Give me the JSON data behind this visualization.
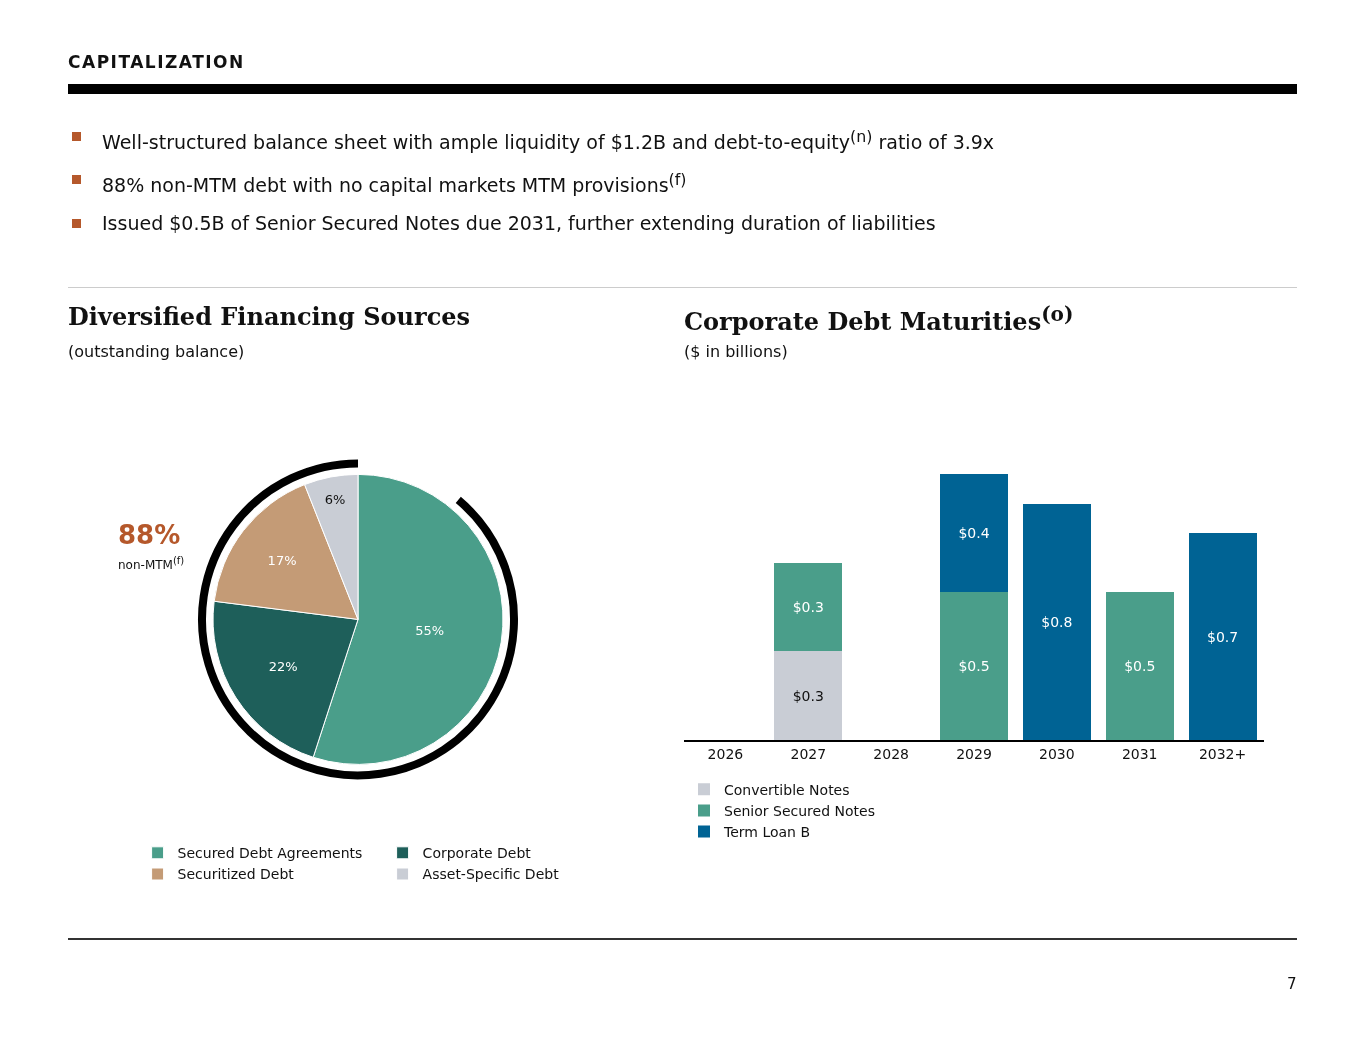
{
  "chart_data": [
    {
      "type": "pie",
      "title": "Diversified Financing Sources",
      "subtitle": "(outstanding balance)",
      "annotations": [
        "CAPITALIZATION",
        "Well-structured balance sheet with ample liquidity of $1.2B and debt-to-equity$^{(n)}$ ratio of 3.9x",
        "88% non-MTM debt with no capital markets MTM provisions$^{(f)}$",
        "Issued $0.5B of Senior Secured Notes due 2031, further extending duration of liabilities",
        "88%",
        "non-MTM$^{(f)}$"
      ],
      "categories": [
        "Secured Debt Agreements",
        "Corporate Debt",
        "Securitized Debt",
        "Asset-Specific Debt"
      ],
      "values": [
        55,
        22,
        17,
        6
      ],
      "value_labels": [
        "55%",
        "22%",
        "17%",
        "6%"
      ],
      "colors": [
        "#4a9e8a",
        "#1e5f5a",
        "#c49b76",
        "#c9cdd5"
      ],
      "legend": "bottom"
    },
    {
      "type": "bar",
      "title": "Corporate Debt Maturities$^{(o)}$",
      "subtitle": "($ in billions)",
      "annotations": [
        "7"
      ],
      "categories": [
        "2026",
        "2027",
        "2028",
        "2029",
        "2030",
        "2031",
        "2032+"
      ],
      "stacked": true,
      "series": [
        {
          "name": "Convertible Notes",
          "color": "#c9cdd5",
          "values": [
            null,
            0.3,
            null,
            null,
            null,
            null,
            null
          ],
          "value_labels": [
            null,
            "$0.3",
            null,
            null,
            null,
            null,
            null
          ]
        },
        {
          "name": "Senior Secured Notes",
          "color": "#4a9e8a",
          "values": [
            null,
            0.3,
            null,
            0.5,
            null,
            0.5,
            null
          ],
          "value_labels": [
            null,
            "$0.3",
            null,
            "$0.5",
            null,
            "$0.5",
            null
          ]
        },
        {
          "name": "Term Loan B",
          "color": "#006394",
          "values": [
            null,
            null,
            null,
            0.4,
            0.8,
            null,
            0.7
          ],
          "value_labels": [
            null,
            null,
            null,
            "$0.4",
            "$0.8",
            null,
            "$0.7"
          ]
        }
      ],
      "tick_labels": "x",
      "legend": "bottom"
    }
  ]
}
